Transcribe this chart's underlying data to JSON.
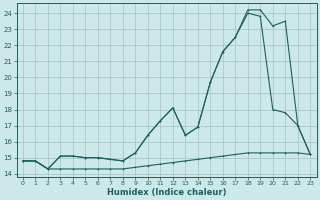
{
  "xlabel": "Humidex (Indice chaleur)",
  "xlim": [
    -0.5,
    23.5
  ],
  "ylim": [
    13.8,
    24.6
  ],
  "yticks": [
    14,
    15,
    16,
    17,
    18,
    19,
    20,
    21,
    22,
    23,
    24
  ],
  "xticks": [
    0,
    1,
    2,
    3,
    4,
    5,
    6,
    7,
    8,
    9,
    10,
    11,
    12,
    13,
    14,
    15,
    16,
    17,
    18,
    19,
    20,
    21,
    22,
    23
  ],
  "bg_color": "#cde8e8",
  "grid_color": "#aac8c8",
  "line_color": "#1a6060",
  "line1_x": [
    0,
    1,
    2,
    3,
    4,
    5,
    6,
    7,
    8,
    9,
    10,
    11,
    12,
    13,
    14,
    15,
    16,
    17,
    18,
    19,
    20,
    21,
    22,
    23
  ],
  "line1_y": [
    14.8,
    14.8,
    14.3,
    14.3,
    14.3,
    14.3,
    14.3,
    14.3,
    14.3,
    14.4,
    14.5,
    14.6,
    14.7,
    14.8,
    14.9,
    15.0,
    15.1,
    15.2,
    15.3,
    15.3,
    15.3,
    15.3,
    15.3,
    15.2
  ],
  "line2_x": [
    0,
    1,
    2,
    3,
    4,
    5,
    6,
    7,
    8,
    9,
    10,
    11,
    12,
    13,
    14,
    15,
    16,
    17,
    18,
    19,
    20,
    21,
    22,
    23
  ],
  "line2_y": [
    14.8,
    14.8,
    14.3,
    15.1,
    15.1,
    15.0,
    15.0,
    14.9,
    14.8,
    15.3,
    16.4,
    17.3,
    18.1,
    16.4,
    16.9,
    19.7,
    21.6,
    22.5,
    24.0,
    23.8,
    18.0,
    17.8,
    17.0,
    15.2
  ],
  "line3_x": [
    0,
    1,
    2,
    3,
    4,
    5,
    6,
    7,
    8,
    9,
    10,
    11,
    12,
    13,
    14,
    15,
    16,
    17,
    18,
    19,
    20,
    21,
    22,
    23
  ],
  "line3_y": [
    14.8,
    14.8,
    14.3,
    15.1,
    15.1,
    15.0,
    15.0,
    14.9,
    14.8,
    15.3,
    16.4,
    17.3,
    18.1,
    16.4,
    16.9,
    19.7,
    21.6,
    22.5,
    24.2,
    24.2,
    23.2,
    23.5,
    17.0,
    15.2
  ]
}
